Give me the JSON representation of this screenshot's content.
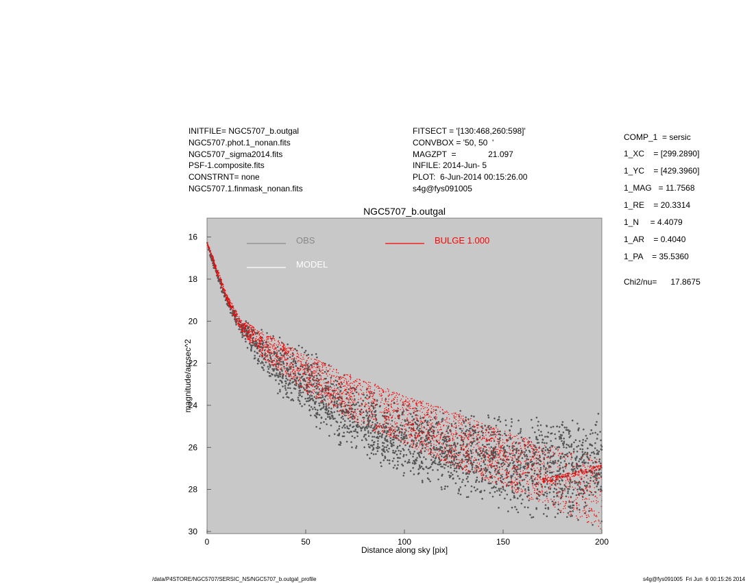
{
  "header": {
    "left": [
      "INITFILE= NGC5707_b.outgal",
      "NGC5707.phot.1_nonan.fits",
      "NGC5707_sigma2014.fits",
      "PSF-1.composite.fits",
      "CONSTRNT= none",
      "NGC5707.1.finmask_nonan.fits"
    ],
    "middle": [
      "FITSECT = '[130:468,260:598]'",
      "CONVBOX = '50, 50  '",
      "MAGZPT  =              21.097",
      "INFILE: 2014-Jun- 5",
      "PLOT:  6-Jun-2014 00:15:26.00",
      "s4g@fys091005"
    ]
  },
  "params": [
    "COMP_1  = sersic",
    "1_XC    = [299.2890]",
    "1_YC    = [429.3960]",
    "1_MAG   = 11.7568",
    "1_RE    = 20.3314",
    "1_N     = 4.4079",
    "1_AR    = 0.4040",
    "1_PA    = 35.5360",
    "Chi2/nu=      17.8675"
  ],
  "footer": {
    "left": "/data/P4STORE/NGC5707/SERSIC_NS/NGC5707_b.outgal_profile",
    "right": "s4g@fys091005  Fri Jun  6 00:15:26 2014"
  },
  "colors": {
    "plot_bg": "#c8c8c8",
    "obs": "#555555",
    "model": "#ffffff",
    "bulge": "#ff0000",
    "legend_obs_text": "#888888"
  },
  "chart_data": {
    "type": "scatter",
    "title": "NGC5707_b.outgal",
    "xlabel": "Distance along sky [pix]",
    "ylabel": "magnitude/arcsec^2",
    "xlim": [
      0,
      200
    ],
    "ylim": [
      30.1,
      15.1
    ],
    "y_inverted": true,
    "xticks": [
      0,
      50,
      100,
      150,
      200
    ],
    "yticks": [
      16,
      18,
      20,
      22,
      24,
      26,
      28,
      30
    ],
    "legend": [
      {
        "name": "OBS",
        "color": "#888888"
      },
      {
        "name": "MODEL",
        "color": "#ffffff"
      },
      {
        "name": "BULGE  1.000",
        "color": "#ff0000"
      }
    ],
    "series": [
      {
        "name": "OBS",
        "kind": "points",
        "upper_envelope": {
          "x": [
            0,
            5,
            10,
            18,
            30,
            50,
            70,
            80,
            100,
            120,
            150,
            175,
            200
          ],
          "y": [
            16.3,
            17.5,
            18.9,
            19.9,
            20.3,
            21.2,
            22.3,
            23.2,
            23.9,
            24.1,
            24.4,
            24.3,
            24.2
          ]
        },
        "lower_envelope": {
          "x": [
            0,
            5,
            10,
            18,
            30,
            50,
            75,
            100,
            125,
            150,
            175,
            200
          ],
          "y": [
            16.4,
            17.9,
            19.2,
            20.9,
            23.0,
            24.8,
            26.5,
            27.5,
            28.4,
            29.1,
            29.6,
            29.9
          ]
        }
      },
      {
        "name": "BULGE  1.000",
        "kind": "points",
        "upper_envelope": {
          "x": [
            0,
            5,
            10,
            17,
            30,
            50,
            75,
            100,
            125,
            150,
            170,
            185,
            200
          ],
          "y": [
            16.2,
            17.4,
            18.7,
            19.9,
            20.6,
            21.6,
            22.6,
            23.5,
            24.3,
            25.2,
            25.8,
            26.2,
            26.5
          ]
        },
        "lower_envelope": {
          "x": [
            0,
            5,
            10,
            17,
            30,
            50,
            75,
            100,
            125,
            150,
            175,
            200
          ],
          "y": [
            16.3,
            17.8,
            19.0,
            20.5,
            21.9,
            23.4,
            24.8,
            25.9,
            26.9,
            27.9,
            28.9,
            29.9
          ]
        },
        "branch": {
          "x": [
            170,
            185,
            200
          ],
          "y": [
            27.6,
            27.3,
            26.9
          ]
        }
      }
    ]
  }
}
